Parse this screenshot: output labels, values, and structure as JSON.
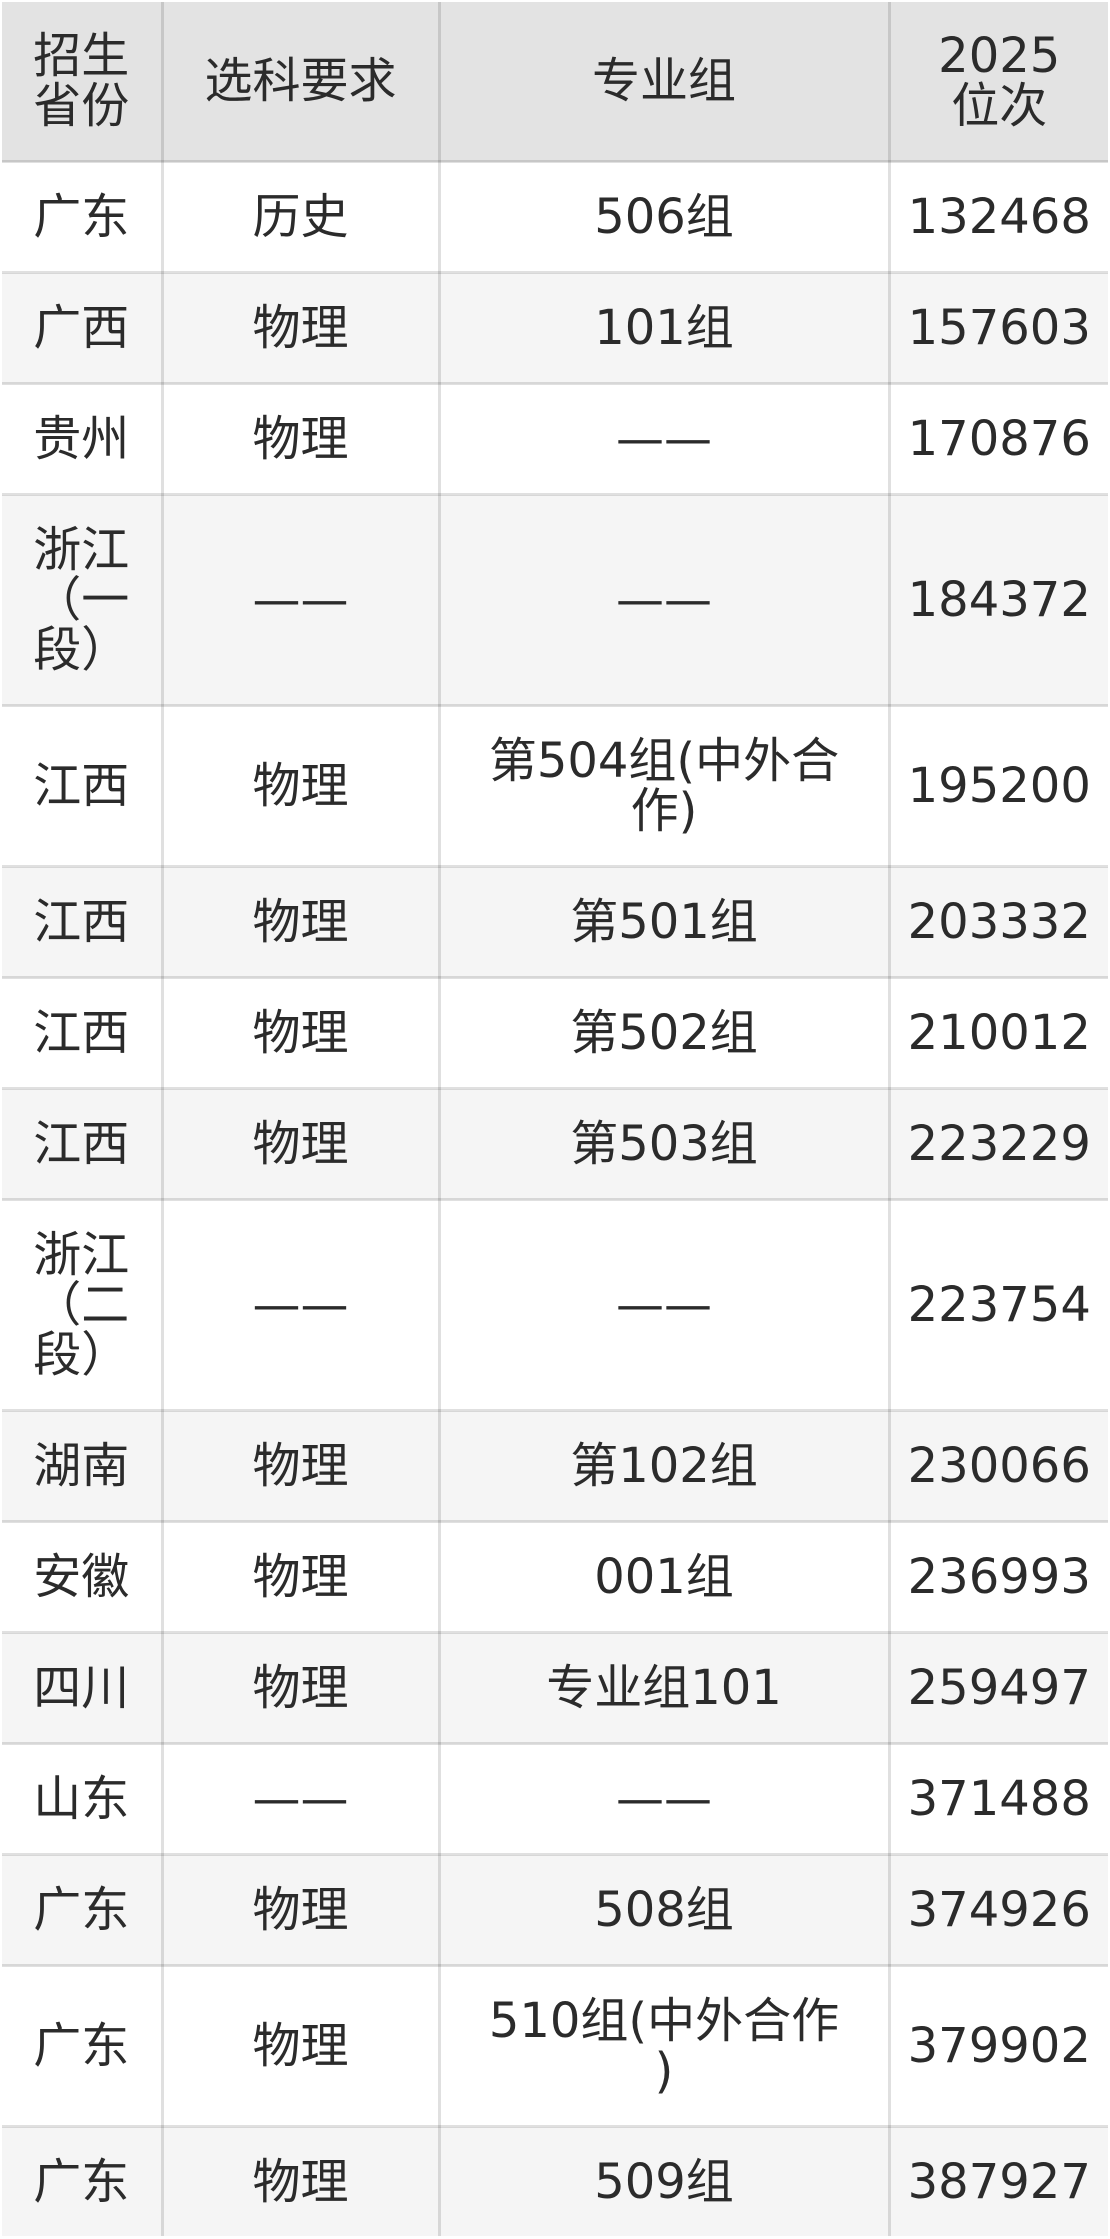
{
  "page": {
    "background": "#ffffff",
    "text_color": "#2b2b2b",
    "header_bg": "#e3e3e3",
    "zebra_row_bg": "#f5f5f5",
    "default_row_bg": "#ffffff",
    "border_color": "rgba(0,0,0,0.12)"
  },
  "display": {
    "header": [
      "招生\n省份",
      "选科要求",
      "专业组",
      "2025\n位次"
    ],
    "rows": [
      [
        "广东",
        "历史",
        "506组",
        "132468"
      ],
      [
        "广西",
        "物理",
        "101组",
        "157603"
      ],
      [
        "贵州",
        "物理",
        "——",
        "170876"
      ],
      [
        "浙江\n（一\n段）",
        "——",
        "——",
        "184372"
      ],
      [
        "江西",
        "物理",
        "第504组(中外合\n作)",
        "195200"
      ],
      [
        "江西",
        "物理",
        "第501组",
        "203332"
      ],
      [
        "江西",
        "物理",
        "第502组",
        "210012"
      ],
      [
        "江西",
        "物理",
        "第503组",
        "223229"
      ],
      [
        "浙江\n（二\n段）",
        "——",
        "——",
        "223754"
      ],
      [
        "湖南",
        "物理",
        "第102组",
        "230066"
      ],
      [
        "安徽",
        "物理",
        "001组",
        "236993"
      ],
      [
        "四川",
        "物理",
        "专业组101",
        "259497"
      ],
      [
        "山东",
        "——",
        "——",
        "371488"
      ],
      [
        "广东",
        "物理",
        "508组",
        "374926"
      ],
      [
        "广东",
        "物理",
        "510组(中外合作\n)",
        "379902"
      ],
      [
        "广东",
        "物理",
        "509组",
        "387927"
      ]
    ]
  },
  "chart_data": {
    "type": "table",
    "columns": [
      "招生省份",
      "选科要求",
      "专业组",
      "2025位次"
    ],
    "rows": [
      [
        "广东",
        "历史",
        "506组",
        132468
      ],
      [
        "广西",
        "物理",
        "101组",
        157603
      ],
      [
        "贵州",
        "物理",
        "——",
        170876
      ],
      [
        "浙江（一段）",
        "——",
        "——",
        184372
      ],
      [
        "江西",
        "物理",
        "第504组(中外合作)",
        195200
      ],
      [
        "江西",
        "物理",
        "第501组",
        203332
      ],
      [
        "江西",
        "物理",
        "第502组",
        210012
      ],
      [
        "江西",
        "物理",
        "第503组",
        223229
      ],
      [
        "浙江（二段）",
        "——",
        "——",
        223754
      ],
      [
        "湖南",
        "物理",
        "第102组",
        230066
      ],
      [
        "安徽",
        "物理",
        "001组",
        236993
      ],
      [
        "四川",
        "物理",
        "专业组101",
        259497
      ],
      [
        "山东",
        "——",
        "——",
        371488
      ],
      [
        "广东",
        "物理",
        "508组",
        374926
      ],
      [
        "广东",
        "物理",
        "510组(中外合作)",
        379902
      ],
      [
        "广东",
        "物理",
        "509组",
        387927
      ]
    ],
    "layout": {
      "header_row": true,
      "zebra_striping": "even data rows shaded",
      "text_align": "center"
    }
  }
}
